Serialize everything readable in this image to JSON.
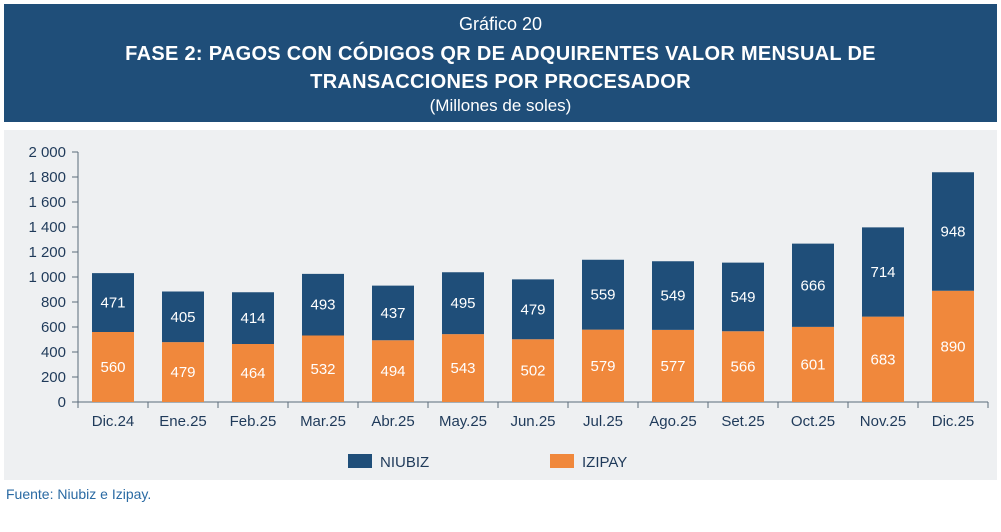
{
  "header": {
    "number": "Gráfico 20",
    "title_line1": "FASE 2: PAGOS CON CÓDIGOS QR DE ADQUIRENTES VALOR MENSUAL DE",
    "title_line2": "TRANSACCIONES POR PROCESADOR",
    "subtitle": "(Millones de soles)"
  },
  "footer": {
    "source": "Fuente: Niubiz e Izipay."
  },
  "colors": {
    "niubiz": "#1f4e79",
    "izipay": "#f0883c",
    "header_bg": "#1f4e79"
  },
  "chart_data": {
    "type": "bar",
    "stacked": true,
    "categories": [
      "Dic.24",
      "Ene.25",
      "Feb.25",
      "Mar.25",
      "Abr.25",
      "May.25",
      "Jun.25",
      "Jul.25",
      "Ago.25",
      "Set.25",
      "Oct.25",
      "Nov.25",
      "Dic.25"
    ],
    "series": [
      {
        "name": "IZIPAY",
        "color": "#f0883c",
        "values": [
          560,
          479,
          464,
          532,
          494,
          543,
          502,
          579,
          577,
          566,
          601,
          683,
          890
        ]
      },
      {
        "name": "NIUBIZ",
        "color": "#1f4e79",
        "values": [
          471,
          405,
          414,
          493,
          437,
          495,
          479,
          559,
          549,
          549,
          666,
          714,
          948
        ]
      }
    ],
    "ylim": [
      0,
      2000
    ],
    "yticks": [
      0,
      200,
      400,
      600,
      800,
      1000,
      1200,
      1400,
      1600,
      1800,
      2000
    ],
    "ytick_labels": [
      "0",
      "200",
      "400",
      "600",
      "800",
      "1 000",
      "1 200",
      "1 400",
      "1 600",
      "1 800",
      "2 000"
    ],
    "legend": {
      "placement": "bottom",
      "entries": [
        "NIUBIZ",
        "IZIPAY"
      ]
    },
    "grid": false
  }
}
